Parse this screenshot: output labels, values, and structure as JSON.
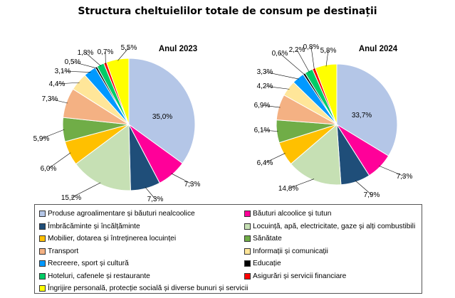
{
  "title": "Structura cheltuielilor totale de consum pe destinații",
  "colors": [
    "#b4c6e7",
    "#ff0099",
    "#1f4e79",
    "#c6e0b4",
    "#ffc000",
    "#70ad47",
    "#f4b183",
    "#ffe699",
    "#0099ff",
    "#000000",
    "#00cc66",
    "#ff0000",
    "#ffff00"
  ],
  "legend": [
    "Produse agroalimentare și băuturi nealcoolice",
    "Băuturi alcoolice și tutun",
    "Îmbrăcăminte și încălțăminte",
    "Locuință, apă, electricitate, gaze și alți combustibili",
    "Mobilier, dotarea și întreținerea locuinței",
    "Sănătate",
    "Transport",
    "Informații și comunicații",
    "Recreere, sport și cultură",
    "Educație",
    "Hoteluri, cafenele și restaurante",
    "Asigurări și servicii financiare",
    "Îngrijire personală, protecție socială și diverse bunuri și servicii"
  ],
  "chart_data": [
    {
      "type": "pie",
      "title": "Anul 2023",
      "categories": [
        "Produse agroalimentare și băuturi nealcoolice",
        "Băuturi alcoolice și tutun",
        "Îmbrăcăminte și încălțăminte",
        "Locuință, apă, electricitate, gaze și alți combustibili",
        "Mobilier, dotarea și întreținerea locuinței",
        "Sănătate",
        "Transport",
        "Informații și comunicații",
        "Recreere, sport și cultură",
        "Educație",
        "Hoteluri, cafenele și restaurante",
        "Asigurări și servicii financiare",
        "Îngrijire personală, protecție socială și diverse bunuri și servicii"
      ],
      "values": [
        35.0,
        7.3,
        7.3,
        15.2,
        6.0,
        5.9,
        7.3,
        4.4,
        3.1,
        0.5,
        1.8,
        0.7,
        5.5
      ],
      "labels": [
        "35,0%",
        "7,3%",
        "7,3%",
        "15,2%",
        "6,0%",
        "5,9%",
        "7,3%",
        "4,4%",
        "3,1%",
        "0,5%",
        "1,8%",
        "0,7%",
        "5,5%"
      ]
    },
    {
      "type": "pie",
      "title": "Anul 2024",
      "categories": [
        "Produse agroalimentare și băuturi nealcoolice",
        "Băuturi alcoolice și tutun",
        "Îmbrăcăminte și încălțăminte",
        "Locuință, apă, electricitate, gaze și alți combustibili",
        "Mobilier, dotarea și întreținerea locuinței",
        "Sănătate",
        "Transport",
        "Informații și comunicații",
        "Recreere, sport și cultură",
        "Educație",
        "Hoteluri, cafenele și restaurante",
        "Asigurări și servicii financiare",
        "Îngrijire personală, protecție socială și diverse bunuri și servicii"
      ],
      "values": [
        33.7,
        7.3,
        7.9,
        14.8,
        6.4,
        6.1,
        6.9,
        4.2,
        3.3,
        0.6,
        2.2,
        0.8,
        5.8
      ],
      "labels": [
        "33,7%",
        "7,3%",
        "7,9%",
        "14,8%",
        "6,4%",
        "6,1%",
        "6,9%",
        "4,2%",
        "3,3%",
        "0,6%",
        "2,2%",
        "0,8%",
        "5,8%"
      ]
    }
  ]
}
